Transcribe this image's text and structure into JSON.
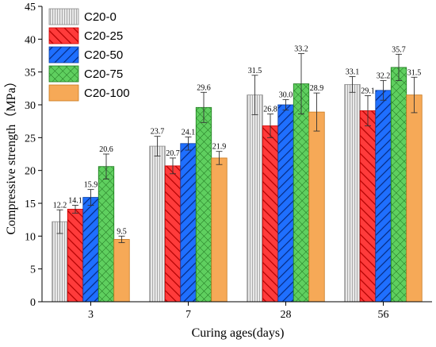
{
  "chart_data": {
    "type": "bar",
    "title": "",
    "xlabel": "Curing ages(days)",
    "ylabel": "Compressive strength（MPa）",
    "ylim": [
      0,
      45
    ],
    "yticks": [
      0,
      5,
      10,
      15,
      20,
      25,
      30,
      35,
      40,
      45
    ],
    "grid": false,
    "legend_position": "top-left",
    "categories": [
      "3",
      "7",
      "28",
      "56"
    ],
    "series": [
      {
        "name": "C20-0",
        "values": [
          12.2,
          23.7,
          31.5,
          33.1
        ],
        "errors": [
          1.8,
          1.5,
          3.0,
          1.2
        ],
        "color": "#e6e6e6",
        "edge": "#8a8a8a",
        "pattern": "vlines"
      },
      {
        "name": "C20-25",
        "values": [
          14.1,
          20.7,
          26.8,
          29.1
        ],
        "errors": [
          0.6,
          1.2,
          1.8,
          2.3
        ],
        "color": "#ff3b3b",
        "edge": "#cc0000",
        "pattern": "hatch-up"
      },
      {
        "name": "C20-50",
        "values": [
          15.9,
          24.1,
          30.0,
          32.2
        ],
        "errors": [
          1.2,
          1.0,
          0.8,
          1.5
        ],
        "color": "#1f6fff",
        "edge": "#0a3fa0",
        "pattern": "hatch-down"
      },
      {
        "name": "C20-75",
        "values": [
          20.6,
          29.6,
          33.2,
          35.7
        ],
        "errors": [
          1.9,
          2.3,
          4.6,
          2.0
        ],
        "color": "#59c359",
        "edge": "#1e7a1e",
        "pattern": "crosshatch"
      },
      {
        "name": "C20-100",
        "values": [
          9.5,
          21.9,
          28.9,
          31.5
        ],
        "errors": [
          0.5,
          1.0,
          2.9,
          2.7
        ],
        "color": "#f6a957",
        "edge": "#c97a20",
        "pattern": "none"
      }
    ]
  }
}
